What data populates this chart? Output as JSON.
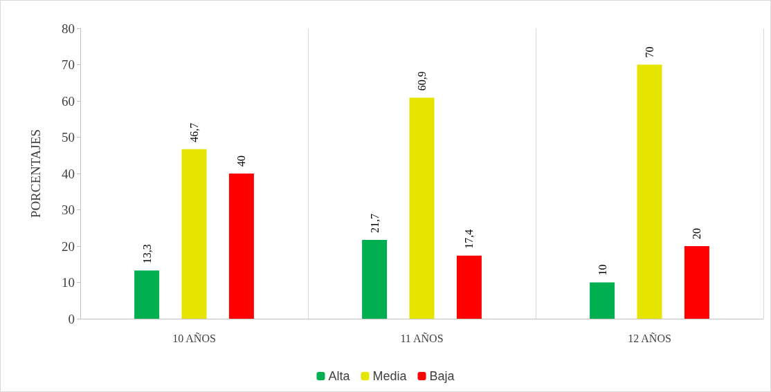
{
  "chart_data": {
    "type": "bar",
    "ylabel": "PORCENTAJES",
    "categories": [
      "10 AÑOS",
      "11 AÑOS",
      "12 AÑOS"
    ],
    "series": [
      {
        "name": "Alta",
        "color": "#00b050",
        "values": [
          13.3,
          21.7,
          10
        ],
        "value_labels": [
          "13,3",
          "21,7",
          "10"
        ]
      },
      {
        "name": "Media",
        "color": "#e5e500",
        "values": [
          46.7,
          60.9,
          70
        ],
        "value_labels": [
          "46,7",
          "60,9",
          "70"
        ]
      },
      {
        "name": "Baja",
        "color": "#ff0000",
        "values": [
          40,
          17.4,
          20
        ],
        "value_labels": [
          "40",
          "17,4",
          "20"
        ]
      }
    ],
    "ylim": [
      0,
      80
    ],
    "yticks": [
      0,
      10,
      20,
      30,
      40,
      50,
      60,
      70,
      80
    ],
    "grid": "x",
    "legend": "bottom"
  }
}
